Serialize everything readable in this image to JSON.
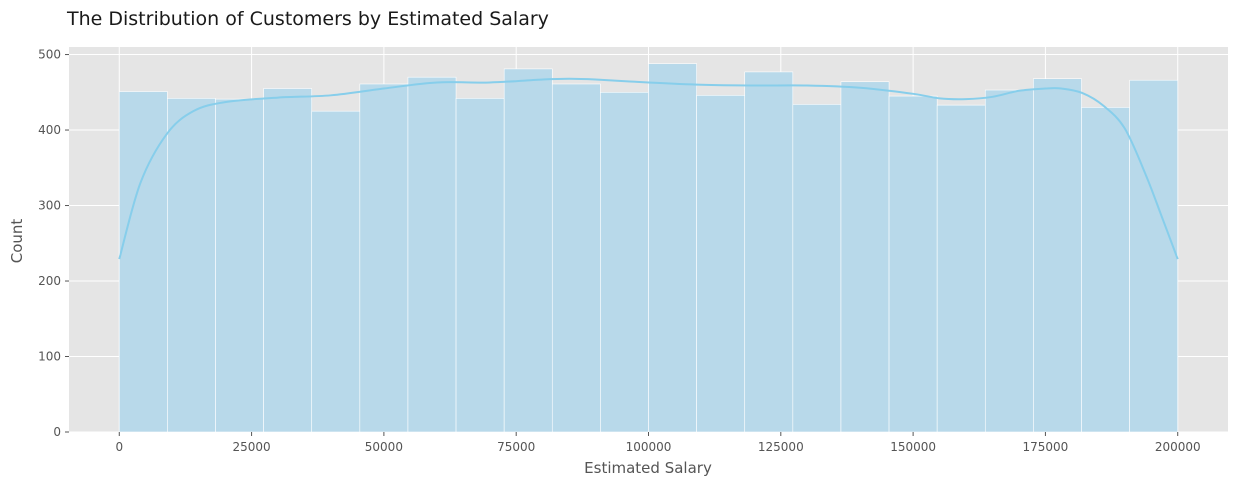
{
  "chart_data": {
    "type": "bar",
    "title": "The Distribution of Customers by Estimated Salary",
    "xlabel": "Estimated Salary",
    "ylabel": "Count",
    "xlim": [
      -9500,
      209500
    ],
    "ylim": [
      0,
      510
    ],
    "xticks": [
      0,
      25000,
      50000,
      75000,
      100000,
      125000,
      150000,
      175000,
      200000
    ],
    "yticks": [
      0,
      100,
      200,
      300,
      400,
      500
    ],
    "bin_start": 0,
    "bin_end": 200000,
    "values": [
      451,
      442,
      441,
      455,
      425,
      461,
      470,
      442,
      481,
      461,
      450,
      488,
      446,
      477,
      434,
      464,
      445,
      433,
      453,
      468,
      430,
      466
    ],
    "kde": {
      "x": [
        0,
        4000,
        9000,
        14000,
        20000,
        30000,
        40000,
        50000,
        60000,
        70000,
        80000,
        85000,
        90000,
        100000,
        110000,
        120000,
        130000,
        140000,
        150000,
        155000,
        160000,
        165000,
        170000,
        175000,
        178000,
        182000,
        186000,
        190000,
        194000,
        197000,
        200000
      ],
      "y": [
        229,
        330,
        395,
        425,
        437,
        443,
        446,
        455,
        463,
        463,
        467,
        468,
        467,
        463,
        460,
        459,
        459,
        456,
        448,
        442,
        441,
        444,
        452,
        455,
        455,
        449,
        432,
        402,
        340,
        285,
        229
      ]
    },
    "grid": true,
    "legend": "none",
    "colors": {
      "bar_fill": "#b8d9ea",
      "bar_edge": "#ffffff",
      "kde_line": "#87ceeb",
      "plot_background": "#e5e5e5",
      "grid": "#ffffff",
      "text": "#555555",
      "title": "#1a1a1a"
    }
  }
}
